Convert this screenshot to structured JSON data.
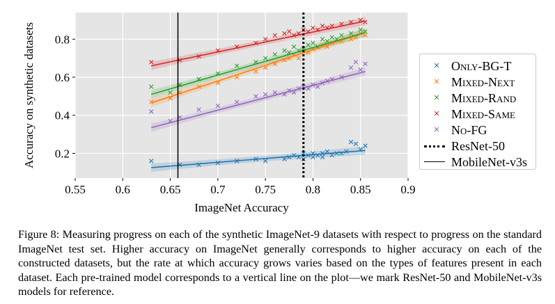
{
  "figure": {
    "chart_data": {
      "type": "scatter",
      "xlabel": "ImageNet Accuracy",
      "ylabel": "Accuracy on synthetic datasets",
      "xlim": [
        0.55,
        0.9
      ],
      "ylim": [
        0.07,
        0.94
      ],
      "xticks": [
        "0.55",
        "0.6",
        "0.65",
        "0.7",
        "0.75",
        "0.8",
        "0.85",
        "0.9"
      ],
      "yticks": [
        "0.2",
        "0.4",
        "0.6",
        "0.8"
      ],
      "grid": true,
      "legend_position": "right-outside",
      "series": [
        {
          "name": "Only-BG-T",
          "color": "#1f77b4",
          "marker": "x",
          "points": [
            [
              0.63,
              0.16
            ],
            [
              0.66,
              0.14
            ],
            [
              0.68,
              0.14
            ],
            [
              0.7,
              0.15
            ],
            [
              0.72,
              0.16
            ],
            [
              0.74,
              0.17
            ],
            [
              0.75,
              0.16
            ],
            [
              0.77,
              0.17
            ],
            [
              0.775,
              0.18
            ],
            [
              0.78,
              0.19
            ],
            [
              0.785,
              0.18
            ],
            [
              0.79,
              0.17
            ],
            [
              0.79,
              0.2
            ],
            [
              0.795,
              0.19
            ],
            [
              0.8,
              0.18
            ],
            [
              0.8,
              0.2
            ],
            [
              0.805,
              0.19
            ],
            [
              0.81,
              0.2
            ],
            [
              0.81,
              0.18
            ],
            [
              0.815,
              0.21
            ],
            [
              0.82,
              0.19
            ],
            [
              0.825,
              0.2
            ],
            [
              0.83,
              0.2
            ],
            [
              0.835,
              0.21
            ],
            [
              0.84,
              0.26
            ],
            [
              0.845,
              0.25
            ],
            [
              0.85,
              0.22
            ],
            [
              0.855,
              0.24
            ]
          ],
          "fit": [
            [
              0.63,
              0.125
            ],
            [
              0.855,
              0.215
            ]
          ]
        },
        {
          "name": "Mixed-Next",
          "color": "#ff7f0e",
          "marker": "x",
          "points": [
            [
              0.63,
              0.47
            ],
            [
              0.65,
              0.49
            ],
            [
              0.66,
              0.52
            ],
            [
              0.68,
              0.55
            ],
            [
              0.7,
              0.57
            ],
            [
              0.72,
              0.6
            ],
            [
              0.74,
              0.63
            ],
            [
              0.75,
              0.65
            ],
            [
              0.76,
              0.67
            ],
            [
              0.77,
              0.69
            ],
            [
              0.775,
              0.7
            ],
            [
              0.78,
              0.72
            ],
            [
              0.785,
              0.7
            ],
            [
              0.79,
              0.74
            ],
            [
              0.795,
              0.73
            ],
            [
              0.8,
              0.75
            ],
            [
              0.805,
              0.76
            ],
            [
              0.81,
              0.77
            ],
            [
              0.815,
              0.76
            ],
            [
              0.82,
              0.78
            ],
            [
              0.83,
              0.79
            ],
            [
              0.84,
              0.8
            ],
            [
              0.845,
              0.81
            ],
            [
              0.85,
              0.83
            ],
            [
              0.855,
              0.82
            ]
          ],
          "fit": [
            [
              0.63,
              0.465
            ],
            [
              0.855,
              0.835
            ]
          ]
        },
        {
          "name": "Mixed-Rand",
          "color": "#2ca02c",
          "marker": "x",
          "points": [
            [
              0.63,
              0.55
            ],
            [
              0.65,
              0.52
            ],
            [
              0.66,
              0.56
            ],
            [
              0.68,
              0.59
            ],
            [
              0.7,
              0.62
            ],
            [
              0.72,
              0.66
            ],
            [
              0.74,
              0.68
            ],
            [
              0.75,
              0.7
            ],
            [
              0.76,
              0.72
            ],
            [
              0.77,
              0.74
            ],
            [
              0.775,
              0.73
            ],
            [
              0.78,
              0.76
            ],
            [
              0.785,
              0.74
            ],
            [
              0.79,
              0.75
            ],
            [
              0.795,
              0.77
            ],
            [
              0.8,
              0.78
            ],
            [
              0.805,
              0.76
            ],
            [
              0.81,
              0.8
            ],
            [
              0.815,
              0.79
            ],
            [
              0.82,
              0.81
            ],
            [
              0.825,
              0.8
            ],
            [
              0.83,
              0.82
            ],
            [
              0.84,
              0.83
            ],
            [
              0.85,
              0.85
            ],
            [
              0.855,
              0.84
            ]
          ],
          "fit": [
            [
              0.63,
              0.51
            ],
            [
              0.855,
              0.835
            ]
          ]
        },
        {
          "name": "Mixed-Same",
          "color": "#d62728",
          "marker": "x",
          "points": [
            [
              0.63,
              0.68
            ],
            [
              0.66,
              0.69
            ],
            [
              0.68,
              0.71
            ],
            [
              0.7,
              0.74
            ],
            [
              0.72,
              0.76
            ],
            [
              0.74,
              0.78
            ],
            [
              0.75,
              0.8
            ],
            [
              0.76,
              0.82
            ],
            [
              0.77,
              0.83
            ],
            [
              0.775,
              0.84
            ],
            [
              0.78,
              0.82
            ],
            [
              0.785,
              0.83
            ],
            [
              0.79,
              0.85
            ],
            [
              0.795,
              0.84
            ],
            [
              0.8,
              0.86
            ],
            [
              0.805,
              0.85
            ],
            [
              0.81,
              0.87
            ],
            [
              0.815,
              0.86
            ],
            [
              0.82,
              0.87
            ],
            [
              0.83,
              0.88
            ],
            [
              0.84,
              0.89
            ],
            [
              0.85,
              0.9
            ],
            [
              0.855,
              0.89
            ]
          ],
          "fit": [
            [
              0.63,
              0.66
            ],
            [
              0.855,
              0.895
            ]
          ]
        },
        {
          "name": "No-FG",
          "color": "#9467bd",
          "marker": "x",
          "points": [
            [
              0.63,
              0.42
            ],
            [
              0.65,
              0.37
            ],
            [
              0.66,
              0.39
            ],
            [
              0.68,
              0.43
            ],
            [
              0.7,
              0.45
            ],
            [
              0.72,
              0.47
            ],
            [
              0.74,
              0.5
            ],
            [
              0.75,
              0.51
            ],
            [
              0.76,
              0.52
            ],
            [
              0.77,
              0.51
            ],
            [
              0.775,
              0.53
            ],
            [
              0.78,
              0.52
            ],
            [
              0.785,
              0.54
            ],
            [
              0.79,
              0.55
            ],
            [
              0.795,
              0.54
            ],
            [
              0.8,
              0.56
            ],
            [
              0.805,
              0.55
            ],
            [
              0.81,
              0.57
            ],
            [
              0.815,
              0.58
            ],
            [
              0.82,
              0.59
            ],
            [
              0.83,
              0.6
            ],
            [
              0.84,
              0.65
            ],
            [
              0.845,
              0.68
            ],
            [
              0.85,
              0.64
            ],
            [
              0.855,
              0.67
            ]
          ],
          "fit": [
            [
              0.63,
              0.335
            ],
            [
              0.855,
              0.63
            ]
          ]
        }
      ],
      "reference_lines": [
        {
          "name": "ResNet-50",
          "x": 0.79,
          "style": "dotted"
        },
        {
          "name": "MobileNet-v3s",
          "x": 0.658,
          "style": "solid"
        }
      ]
    }
  },
  "legend": {
    "items": [
      {
        "label": "Only-BG-T",
        "color": "#1f77b4"
      },
      {
        "label": "Mixed-Next",
        "color": "#ff7f0e"
      },
      {
        "label": "Mixed-Rand",
        "color": "#2ca02c"
      },
      {
        "label": "Mixed-Same",
        "color": "#d62728"
      },
      {
        "label": "No-FG",
        "color": "#9467bd"
      }
    ],
    "lines": [
      {
        "label": "ResNet-50",
        "style": "dotted"
      },
      {
        "label": "MobileNet-v3s",
        "style": "solid"
      }
    ]
  },
  "caption": {
    "text": "Figure 8: Measuring progress on each of the synthetic ImageNet-9 datasets with respect to progress on the standard ImageNet test set. Higher accuracy on ImageNet generally corresponds to higher accuracy on each of the constructed datasets, but the rate at which accuracy grows varies based on the types of features present in each dataset. Each pre-trained model corresponds to a vertical line on the plot—we mark ResNet-50 and MobileNet-v3s models for reference."
  }
}
